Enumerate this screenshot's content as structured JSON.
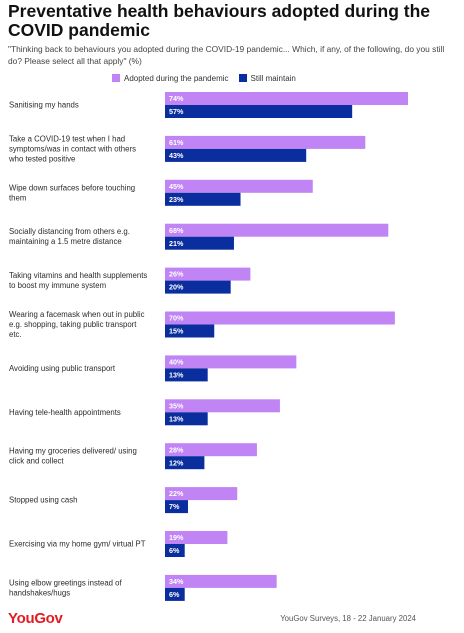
{
  "header": {
    "title": "Preventative health behaviours adopted during the COVID pandemic",
    "subtitle": "\"Thinking back to behaviours you adopted during the COVID-19 pandemic... Which, if any, of the following, do you still do? Please select all that apply\" (%)"
  },
  "footer": {
    "logo": "YouGov",
    "source": "YouGov Surveys, 18 - 22 January 2024"
  },
  "colors": {
    "adopted": "#c084f5",
    "maintain": "#0b2e9e"
  },
  "chart_data": {
    "type": "bar",
    "orientation": "horizontal",
    "title": "Preventative health behaviours adopted during the COVID pandemic",
    "xlim": [
      0,
      74
    ],
    "grid": false,
    "legend_position": "top",
    "categories": [
      [
        "Sanitising my hands"
      ],
      [
        "Take a COVID-19 test when I had",
        "symptoms/was in contact with others",
        "who tested positive"
      ],
      [
        "Wipe down surfaces before touching",
        "them"
      ],
      [
        "Socially distancing from others e.g.",
        "maintaining a 1.5 metre distance"
      ],
      [
        "Taking vitamins and health supplements",
        "to boost my immune system"
      ],
      [
        "Wearing a facemask when out in public",
        "e.g. shopping, taking public transport",
        "etc."
      ],
      [
        "Avoiding using public transport"
      ],
      [
        "Having tele-health appointments"
      ],
      [
        "Having my groceries delivered/ using",
        "click and collect"
      ],
      [
        "Stopped using cash"
      ],
      [
        "Exercising via my home gym/ virtual PT"
      ],
      [
        "Using elbow greetings instead of",
        "handshakes/hugs"
      ]
    ],
    "series": [
      {
        "name": "Adopted during the pandemic",
        "values": [
          74,
          61,
          45,
          68,
          26,
          70,
          40,
          35,
          28,
          22,
          19,
          34
        ],
        "labels": [
          "74%",
          "61%",
          "45%",
          "68%",
          "26%",
          "70%",
          "40%",
          "35%",
          "28%",
          "22%",
          "19%",
          "34%"
        ]
      },
      {
        "name": "Still maintain",
        "values": [
          57,
          43,
          23,
          21,
          20,
          15,
          13,
          13,
          12,
          7,
          6,
          6
        ],
        "labels": [
          "57%",
          "43%",
          "23%",
          "21%",
          "20%",
          "15%",
          "13%",
          "13%",
          "12%",
          "7%",
          "6%",
          "6%"
        ]
      }
    ]
  }
}
